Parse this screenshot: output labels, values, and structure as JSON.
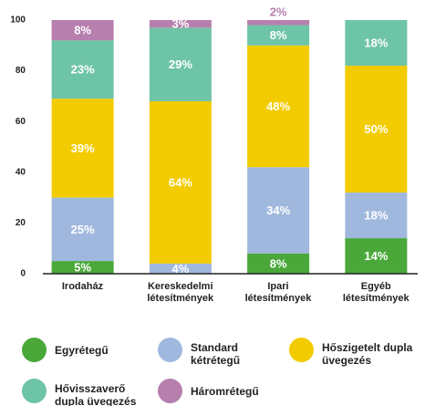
{
  "chart_data": {
    "type": "stacked_bar",
    "categories": [
      "Irodaház",
      "Kereskedelmi\nlétesítmények",
      "Ipari\nlétesítmények",
      "Egyéb\nlétesítmények"
    ],
    "series": [
      {
        "name": "Egyrétegű",
        "color": "#4aa83a",
        "values": [
          5,
          null,
          8,
          14
        ],
        "value_labels": [
          "5%",
          null,
          "8%",
          "14%"
        ]
      },
      {
        "name": "Standard kétrétegű",
        "color": "#a0b8de",
        "values": [
          25,
          4,
          34,
          18
        ],
        "value_labels": [
          "25%",
          "4%",
          "34%",
          "18%"
        ]
      },
      {
        "name": "Hőszigetelt dupla üvegezés",
        "color": "#f2cc00",
        "values": [
          39,
          64,
          48,
          50
        ],
        "value_labels": [
          "39%",
          "64%",
          "48%",
          "50%"
        ]
      },
      {
        "name": "Hővisszaverő dupla üvegezés",
        "color": "#6ec4a6",
        "values": [
          23,
          29,
          8,
          18
        ],
        "value_labels": [
          "23%",
          "29%",
          "8%",
          "18%"
        ]
      },
      {
        "name": "Háromrétegű",
        "color": "#b67fae",
        "values": [
          8,
          3,
          2,
          null
        ],
        "value_labels": [
          "8%",
          "3%",
          "2%",
          null
        ]
      }
    ],
    "ylim": [
      0,
      100
    ],
    "yticks": [
      0,
      20,
      40,
      60,
      80,
      100
    ],
    "grid": false
  }
}
